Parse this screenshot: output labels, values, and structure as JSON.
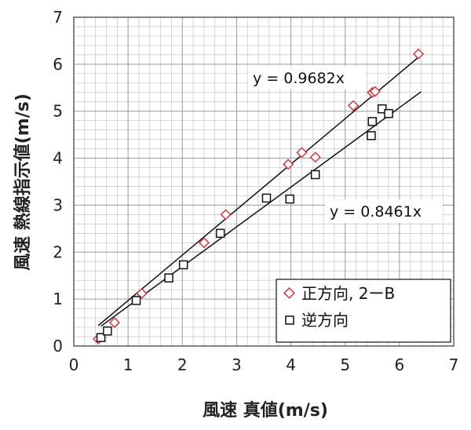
{
  "chart_data": {
    "type": "scatter",
    "xlabel": "風速 真値(m/s)",
    "ylabel": "風速 熱線指示値(m/s)",
    "xlim": [
      0,
      7
    ],
    "ylim": [
      0,
      7
    ],
    "xticks": [
      "0",
      "1",
      "2",
      "3",
      "4",
      "5",
      "6",
      "7"
    ],
    "yticks": [
      "0",
      "1",
      "2",
      "3",
      "4",
      "5",
      "6",
      "7"
    ],
    "grid": true,
    "legend_position": "bottom-right",
    "series": [
      {
        "name": "正方向, 2ーB",
        "marker": "diamond",
        "color": "#d9363e",
        "x": [
          0.45,
          0.75,
          1.25,
          2.4,
          2.8,
          3.95,
          4.2,
          4.45,
          5.15,
          5.5,
          5.55,
          6.35
        ],
        "y": [
          0.15,
          0.5,
          1.12,
          2.2,
          2.8,
          3.87,
          4.12,
          4.02,
          5.12,
          5.4,
          5.42,
          6.22
        ]
      },
      {
        "name": "逆方向",
        "marker": "square",
        "color": "#111111",
        "x": [
          0.5,
          0.62,
          1.15,
          1.75,
          2.02,
          2.7,
          3.55,
          3.98,
          4.45,
          5.48,
          5.5,
          5.68,
          5.8
        ],
        "y": [
          0.18,
          0.32,
          0.97,
          1.45,
          1.73,
          2.4,
          3.15,
          3.13,
          3.65,
          4.48,
          4.78,
          5.05,
          4.95
        ]
      }
    ],
    "trendlines": [
      {
        "label": "y = 0.9682x",
        "slope": 0.9682,
        "x_range": [
          0.45,
          6.35
        ]
      },
      {
        "label": "y = 0.8461x",
        "slope": 0.8461,
        "x_range": [
          0.5,
          6.4
        ]
      }
    ]
  }
}
